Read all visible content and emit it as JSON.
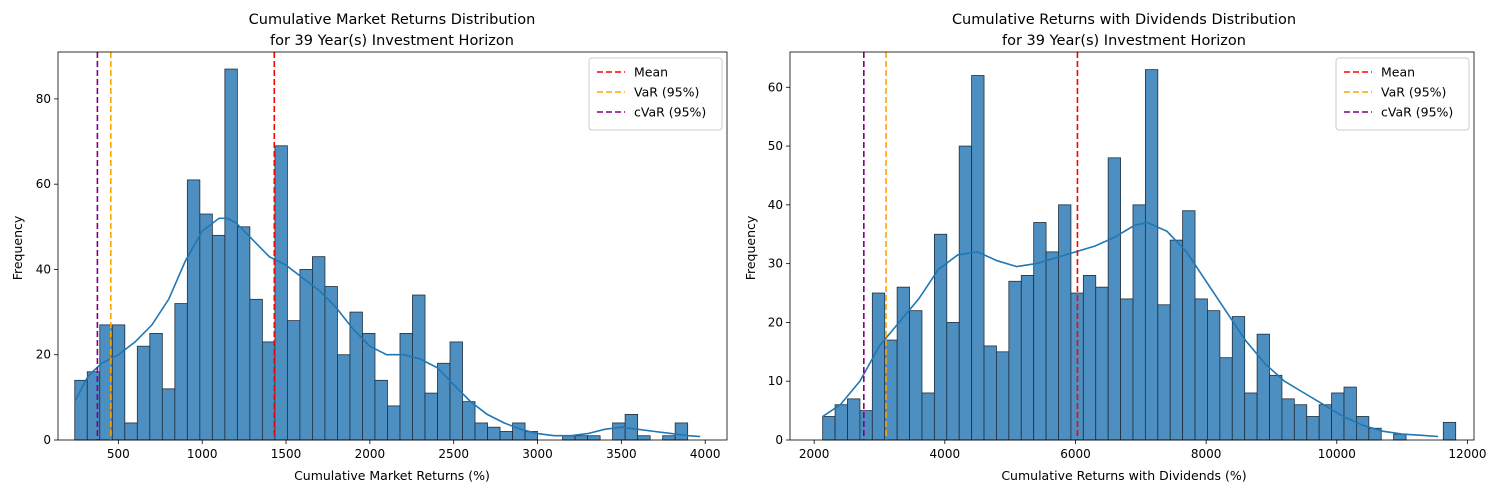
{
  "colors": {
    "bar_fill": "#4c8fc0",
    "bar_edge": "#1f2f3f",
    "kde": "#1f77b4",
    "mean": "#ff0000",
    "var": "#ffa500",
    "cvar": "#800080"
  },
  "chart_data": [
    {
      "type": "bar",
      "title_lines": [
        "Cumulative Market Returns Distribution",
        "for 39 Year(s) Investment Horizon"
      ],
      "xlabel": "Cumulative Market Returns (%)",
      "ylabel": "Frequency",
      "xlim": [
        140,
        4130
      ],
      "ylim": [
        0,
        91
      ],
      "xticks": [
        500,
        1000,
        1500,
        2000,
        2500,
        3000,
        3500,
        4000
      ],
      "yticks": [
        0,
        20,
        40,
        60,
        80
      ],
      "bin_start": 240,
      "bin_width": 74.6,
      "counts": [
        14,
        16,
        27,
        27,
        4,
        22,
        25,
        12,
        32,
        61,
        53,
        48,
        87,
        50,
        33,
        23,
        69,
        28,
        40,
        43,
        36,
        20,
        30,
        25,
        14,
        8,
        25,
        34,
        11,
        18,
        23,
        9,
        4,
        3,
        2,
        4,
        2,
        0,
        0,
        1,
        1,
        1,
        0,
        4,
        6,
        1,
        0,
        1,
        4
      ],
      "kde": [
        [
          240,
          9
        ],
        [
          320,
          15
        ],
        [
          400,
          18
        ],
        [
          500,
          20
        ],
        [
          600,
          23
        ],
        [
          700,
          27
        ],
        [
          800,
          33
        ],
        [
          900,
          42
        ],
        [
          1000,
          49
        ],
        [
          1100,
          52
        ],
        [
          1150,
          52
        ],
        [
          1200,
          51
        ],
        [
          1300,
          47
        ],
        [
          1400,
          43
        ],
        [
          1500,
          41
        ],
        [
          1600,
          38
        ],
        [
          1700,
          35
        ],
        [
          1800,
          31
        ],
        [
          1900,
          26
        ],
        [
          2000,
          22
        ],
        [
          2100,
          20
        ],
        [
          2200,
          20
        ],
        [
          2300,
          19
        ],
        [
          2400,
          17
        ],
        [
          2500,
          13
        ],
        [
          2600,
          9
        ],
        [
          2700,
          6
        ],
        [
          2800,
          4
        ],
        [
          2900,
          2.5
        ],
        [
          3000,
          1.5
        ],
        [
          3100,
          1
        ],
        [
          3200,
          1
        ],
        [
          3300,
          1.5
        ],
        [
          3400,
          2.5
        ],
        [
          3500,
          3
        ],
        [
          3600,
          2.5
        ],
        [
          3700,
          2
        ],
        [
          3800,
          1.5
        ],
        [
          3900,
          1
        ],
        [
          3970,
          0.8
        ]
      ],
      "lines": [
        {
          "name": "Mean",
          "x": 1430,
          "color": "#ff0000"
        },
        {
          "name": "VaR (95%)",
          "x": 455,
          "color": "#ffa500"
        },
        {
          "name": "cVaR (95%)",
          "x": 375,
          "color": "#800080"
        }
      ],
      "legend_position": "upper right"
    },
    {
      "type": "bar",
      "title_lines": [
        "Cumulative Returns with Dividends Distribution",
        "for 39 Year(s) Investment Horizon"
      ],
      "xlabel": "Cumulative Returns with Dividends (%)",
      "ylabel": "Frequency",
      "xlim": [
        1630,
        12100
      ],
      "ylim": [
        0,
        66
      ],
      "xticks": [
        2000,
        4000,
        6000,
        8000,
        10000,
        12000
      ],
      "yticks": [
        0,
        10,
        20,
        30,
        40,
        50,
        60
      ],
      "bin_start": 2130,
      "bin_width": 190,
      "counts": [
        4,
        6,
        7,
        5,
        25,
        17,
        26,
        22,
        8,
        35,
        20,
        50,
        62,
        16,
        15,
        27,
        28,
        37,
        32,
        40,
        25,
        28,
        26,
        48,
        24,
        40,
        63,
        23,
        34,
        39,
        24,
        22,
        14,
        21,
        8,
        18,
        11,
        7,
        6,
        4,
        6,
        8,
        9,
        4,
        2,
        0,
        1,
        0,
        0,
        0,
        3
      ],
      "kde": [
        [
          2130,
          4
        ],
        [
          2400,
          6
        ],
        [
          2700,
          10
        ],
        [
          3000,
          16
        ],
        [
          3300,
          20
        ],
        [
          3600,
          24
        ],
        [
          3900,
          29
        ],
        [
          4200,
          31.5
        ],
        [
          4500,
          32
        ],
        [
          4800,
          30.5
        ],
        [
          5100,
          29.5
        ],
        [
          5400,
          30
        ],
        [
          5700,
          31
        ],
        [
          6000,
          32
        ],
        [
          6300,
          33
        ],
        [
          6600,
          34.5
        ],
        [
          6900,
          36.5
        ],
        [
          7100,
          37
        ],
        [
          7400,
          35.5
        ],
        [
          7700,
          32
        ],
        [
          8000,
          27
        ],
        [
          8300,
          22
        ],
        [
          8600,
          17
        ],
        [
          8900,
          13
        ],
        [
          9200,
          10
        ],
        [
          9500,
          8
        ],
        [
          9800,
          6
        ],
        [
          10100,
          4
        ],
        [
          10400,
          2.5
        ],
        [
          10700,
          1.5
        ],
        [
          11000,
          1
        ],
        [
          11300,
          0.8
        ],
        [
          11550,
          0.6
        ]
      ],
      "lines": [
        {
          "name": "Mean",
          "x": 6030,
          "color": "#ff0000"
        },
        {
          "name": "VaR (95%)",
          "x": 3100,
          "color": "#ffa500"
        },
        {
          "name": "cVaR (95%)",
          "x": 2760,
          "color": "#800080"
        }
      ],
      "legend_position": "upper right"
    }
  ]
}
